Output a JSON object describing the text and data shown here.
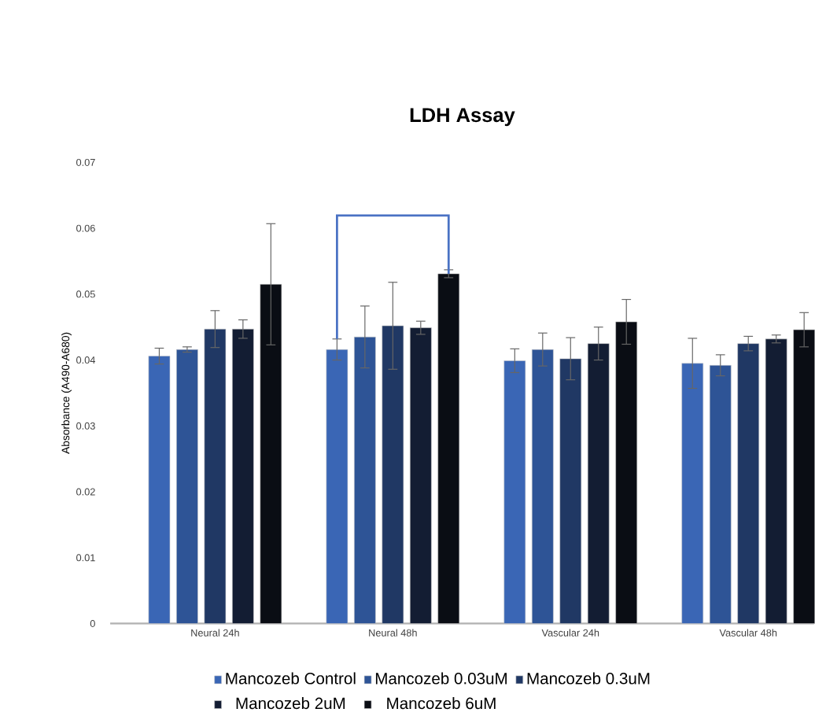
{
  "chart_data": {
    "type": "bar",
    "title": "LDH Assay",
    "ylabel": "Absorbance (A490-A680)",
    "categories": [
      "Neural 24h",
      "Neural 48h",
      "Vascular 24h",
      "Vascular 48h"
    ],
    "series": [
      {
        "name": "Mancozeb Control",
        "color": "#3a66b5",
        "values": [
          0.0406,
          0.0416,
          0.0399,
          0.0395
        ],
        "errors": [
          0.0012,
          0.0016,
          0.0018,
          0.0038
        ]
      },
      {
        "name": "Mancozeb 0.03uM",
        "color": "#2e5496",
        "values": [
          0.0416,
          0.0435,
          0.0416,
          0.0392
        ],
        "errors": [
          0.0004,
          0.0047,
          0.0025,
          0.0016
        ]
      },
      {
        "name": "Mancozeb 0.3uM",
        "color": "#203864",
        "values": [
          0.0447,
          0.0452,
          0.0402,
          0.0425
        ],
        "errors": [
          0.0028,
          0.0066,
          0.0032,
          0.0011
        ]
      },
      {
        "name": "Mancozeb 2uM",
        "color": "#131d33",
        "values": [
          0.0447,
          0.0449,
          0.0425,
          0.0432
        ],
        "errors": [
          0.0014,
          0.001,
          0.0025,
          0.0006
        ]
      },
      {
        "name": "Mancozeb 6uM",
        "color": "#0a0d14",
        "values": [
          0.0515,
          0.0531,
          0.0458,
          0.0446
        ],
        "errors": [
          0.0092,
          0.0006,
          0.0034,
          0.0026
        ]
      }
    ],
    "ylim": [
      0,
      0.07
    ],
    "yticks": [
      0,
      0.01,
      0.02,
      0.03,
      0.04,
      0.05,
      0.06,
      0.07
    ],
    "legend": "bottom"
  }
}
